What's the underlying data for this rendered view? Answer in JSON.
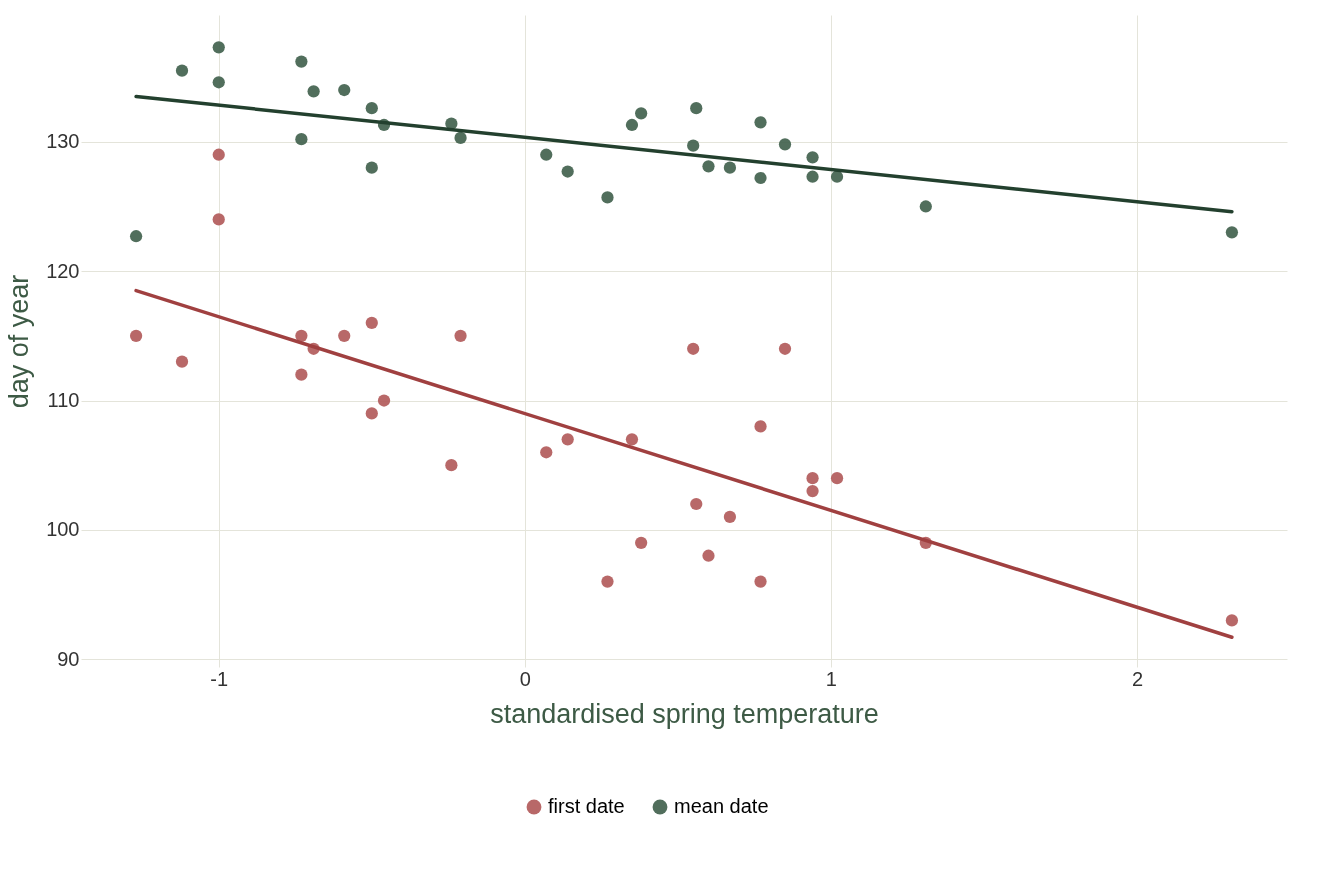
{
  "chart_data": {
    "type": "scatter",
    "xlabel": "standardised spring temperature",
    "ylabel": "day of year",
    "xlim": [
      -1.45,
      2.49
    ],
    "ylim": [
      89.4,
      139.8
    ],
    "xticks": [
      -1,
      0,
      1,
      2
    ],
    "yticks": [
      90,
      100,
      110,
      120,
      130
    ],
    "grid": true,
    "legend": "bottom",
    "marker": "circle",
    "series": [
      {
        "name": "first date",
        "color": "#b05858",
        "x": [
          -1.27,
          -1.12,
          -1.0,
          -1.0,
          -0.73,
          -0.73,
          -0.69,
          -0.59,
          -0.5,
          -0.5,
          -0.46,
          -0.24,
          -0.21,
          0.07,
          0.14,
          0.27,
          0.35,
          0.38,
          0.55,
          0.56,
          0.6,
          0.67,
          0.77,
          0.77,
          0.85,
          0.94,
          0.94,
          1.02,
          1.31,
          2.31
        ],
        "values": [
          115,
          113,
          129,
          124,
          115,
          112,
          114,
          115,
          116,
          109,
          110,
          105,
          115,
          106,
          107,
          96,
          107,
          99,
          114,
          102,
          98,
          101,
          108,
          96,
          114,
          104,
          103,
          104,
          99,
          93
        ]
      },
      {
        "name": "mean date",
        "color": "#3e5e4a",
        "x": [
          -1.27,
          -1.12,
          -1.0,
          -1.0,
          -0.73,
          -0.73,
          -0.69,
          -0.59,
          -0.5,
          -0.46,
          -0.5,
          -0.24,
          -0.21,
          0.07,
          0.14,
          0.27,
          0.35,
          0.38,
          0.55,
          0.56,
          0.6,
          0.67,
          0.77,
          0.77,
          0.85,
          0.94,
          0.94,
          1.02,
          1.31,
          2.31
        ],
        "values": [
          122.7,
          135.5,
          137.3,
          134.6,
          136.2,
          130.2,
          133.9,
          134.0,
          132.6,
          131.3,
          128.0,
          131.4,
          130.3,
          129.0,
          127.7,
          125.7,
          131.3,
          132.2,
          129.7,
          132.6,
          128.1,
          128.0,
          131.5,
          127.2,
          129.8,
          128.8,
          127.3,
          127.3,
          125.0,
          123.0
        ]
      },
      {
        "type": "line",
        "marker": "none",
        "color": "#a04040",
        "x": [
          -1.27,
          2.31
        ],
        "values": [
          118.5,
          91.7
        ]
      },
      {
        "type": "line",
        "marker": "none",
        "color": "#23402e",
        "x": [
          -1.27,
          2.31
        ],
        "values": [
          133.5,
          124.6
        ]
      }
    ]
  }
}
